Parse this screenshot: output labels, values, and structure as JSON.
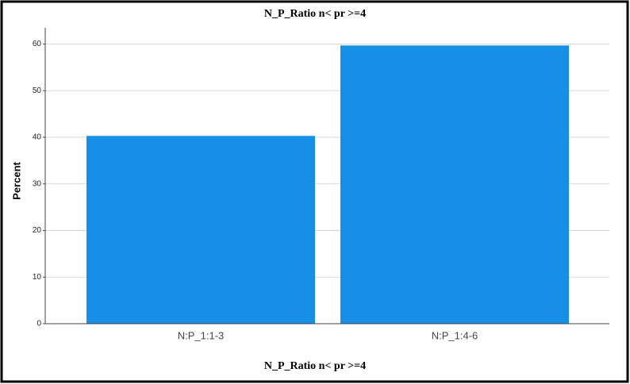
{
  "chart_data": {
    "type": "bar",
    "title": "N_P_Ratio n< pr >=4",
    "x_label": "N_P_Ratio n< pr >=4",
    "y_label": "Percent",
    "categories": [
      "N:P_1:1-3",
      "N:P_1:4-6"
    ],
    "values": [
      40.3,
      59.7
    ],
    "color": "#1590e6",
    "ylim": [
      0,
      63.5
    ],
    "yticks": [
      0,
      10,
      20,
      30,
      40,
      50,
      60
    ],
    "grid": true
  }
}
